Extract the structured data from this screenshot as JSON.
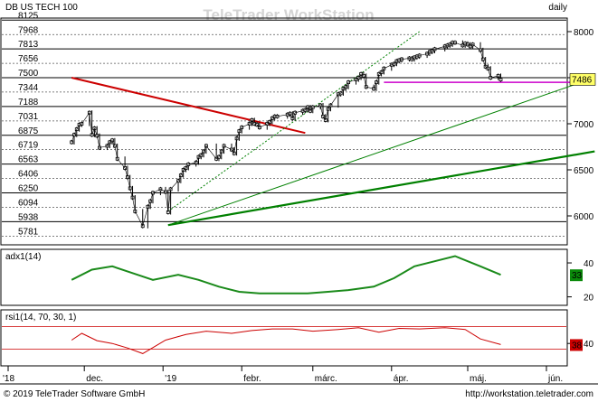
{
  "header": {
    "instrument": "DB US TECH 100",
    "watermark": "TeleTrader WorkStation",
    "period": "daily"
  },
  "footer": {
    "copyright": "© 2019 TeleTrader Software GmbH",
    "url": "http://workstation.teletrader.com"
  },
  "colors": {
    "price": "#000000",
    "trend_red": "#cc0000",
    "trend_green": "#008000",
    "resistance": "#cc00cc",
    "adx": "#1a8a1a",
    "rsi": "#cc0000",
    "adx_badge": "#0a8a0a",
    "rsi_badge": "#cc0000"
  },
  "chart_data": [
    {
      "type": "line",
      "title": "DB US TECH 100",
      "frequency": "daily",
      "x_tick_labels": [
        "'18",
        "dec.",
        "'19",
        "febr.",
        "márc.",
        "ápr.",
        "máj.",
        "jún."
      ],
      "ylim": [
        5700,
        8200
      ],
      "left_levels": [
        8125,
        7968,
        7813,
        7656,
        7500,
        7344,
        7188,
        7031,
        6875,
        6719,
        6563,
        6406,
        6250,
        6094,
        5938,
        5781
      ],
      "right_ticks": [
        6000,
        6500,
        7000,
        7500,
        8000
      ],
      "last_value": 7486,
      "series": [
        {
          "name": "DB US TECH 100",
          "x": [
            "2018-11-26",
            "2018-11-27",
            "2018-11-28",
            "2018-11-29",
            "2018-11-30",
            "2018-12-03",
            "2018-12-04",
            "2018-12-05",
            "2018-12-06",
            "2018-12-07",
            "2018-12-10",
            "2018-12-11",
            "2018-12-12",
            "2018-12-13",
            "2018-12-14",
            "2018-12-17",
            "2018-12-18",
            "2018-12-19",
            "2018-12-20",
            "2018-12-21",
            "2018-12-24",
            "2018-12-26",
            "2018-12-27",
            "2018-12-28",
            "2018-12-31",
            "2019-01-02",
            "2019-01-03",
            "2019-01-04",
            "2019-01-07",
            "2019-01-08",
            "2019-01-09",
            "2019-01-10",
            "2019-01-11",
            "2019-01-14",
            "2019-01-15",
            "2019-01-16",
            "2019-01-17",
            "2019-01-18",
            "2019-01-22",
            "2019-01-23",
            "2019-01-24",
            "2019-01-25",
            "2019-01-28",
            "2019-01-29",
            "2019-01-30",
            "2019-01-31",
            "2019-02-01",
            "2019-02-04",
            "2019-02-05",
            "2019-02-06",
            "2019-02-07",
            "2019-02-08",
            "2019-02-11",
            "2019-02-12",
            "2019-02-13",
            "2019-02-14",
            "2019-02-15",
            "2019-02-19",
            "2019-02-20",
            "2019-02-21",
            "2019-02-22",
            "2019-02-25",
            "2019-02-26",
            "2019-02-27",
            "2019-02-28",
            "2019-03-01",
            "2019-03-04",
            "2019-03-05",
            "2019-03-06",
            "2019-03-07",
            "2019-03-08",
            "2019-03-11",
            "2019-03-12",
            "2019-03-13",
            "2019-03-14",
            "2019-03-15",
            "2019-03-18",
            "2019-03-19",
            "2019-03-20",
            "2019-03-21",
            "2019-03-22",
            "2019-03-25",
            "2019-03-26",
            "2019-03-27",
            "2019-03-28",
            "2019-03-29",
            "2019-04-01",
            "2019-04-02",
            "2019-04-03",
            "2019-04-04",
            "2019-04-05",
            "2019-04-08",
            "2019-04-09",
            "2019-04-10",
            "2019-04-11",
            "2019-04-12",
            "2019-04-15",
            "2019-04-16",
            "2019-04-17",
            "2019-04-18",
            "2019-04-22",
            "2019-04-23",
            "2019-04-24",
            "2019-04-25",
            "2019-04-26",
            "2019-04-29",
            "2019-04-30",
            "2019-05-01",
            "2019-05-02",
            "2019-05-03",
            "2019-05-06",
            "2019-05-07",
            "2019-05-08",
            "2019-05-09",
            "2019-05-10",
            "2019-05-13",
            "2019-05-14"
          ],
          "values": [
            6800,
            6880,
            6940,
            6990,
            7000,
            7120,
            6880,
            6950,
            6870,
            6740,
            6760,
            6800,
            6820,
            6760,
            6620,
            6520,
            6420,
            6300,
            6200,
            6050,
            5890,
            6100,
            6160,
            6250,
            6290,
            6260,
            6040,
            6290,
            6380,
            6440,
            6500,
            6520,
            6560,
            6580,
            6640,
            6660,
            6700,
            6760,
            6620,
            6640,
            6700,
            6760,
            6720,
            6680,
            6840,
            6920,
            6960,
            7000,
            7040,
            7000,
            6990,
            6960,
            7000,
            7020,
            7060,
            7080,
            7080,
            7100,
            7110,
            7060,
            7120,
            7140,
            7150,
            7180,
            7140,
            7180,
            7200,
            7080,
            7040,
            7160,
            7200,
            7320,
            7330,
            7380,
            7400,
            7450,
            7480,
            7500,
            7540,
            7520,
            7400,
            7380,
            7450,
            7540,
            7560,
            7600,
            7640,
            7650,
            7680,
            7690,
            7700,
            7710,
            7700,
            7720,
            7730,
            7740,
            7760,
            7780,
            7790,
            7810,
            7840,
            7850,
            7860,
            7880,
            7880,
            7850,
            7870,
            7860,
            7840,
            7860,
            7800,
            7700,
            7620,
            7600,
            7500,
            7520,
            7480
          ]
        },
        {
          "name": "red trendline",
          "x": [
            "2018-11-26",
            "2019-02-26"
          ],
          "values": [
            7500,
            6900
          ]
        },
        {
          "name": "green support (long)",
          "x": [
            "2019-01-03",
            "2019-06-20"
          ],
          "values": [
            5900,
            6700
          ]
        },
        {
          "name": "green support (steep)",
          "x": [
            "2019-01-03",
            "2019-06-20"
          ],
          "values": [
            5900,
            7500
          ]
        },
        {
          "name": "green channel (dotted)",
          "x": [
            "2019-01-03",
            "2019-04-12"
          ],
          "values": [
            6050,
            8000
          ]
        },
        {
          "name": "resistance",
          "x": [
            "2019-03-29",
            "2019-06-15"
          ],
          "values": [
            7450,
            7450
          ]
        }
      ]
    },
    {
      "type": "line",
      "title": "adx1(14)",
      "ylim": [
        15,
        48
      ],
      "right_ticks": [
        20,
        40
      ],
      "last_value": 33,
      "series": [
        {
          "name": "adx1(14)",
          "x": [
            "2018-11-26",
            "2018-12-04",
            "2018-12-12",
            "2018-12-20",
            "2018-12-28",
            "2019-01-07",
            "2019-01-15",
            "2019-01-23",
            "2019-01-31",
            "2019-02-08",
            "2019-02-19",
            "2019-02-27",
            "2019-03-07",
            "2019-03-15",
            "2019-03-25",
            "2019-04-02",
            "2019-04-10",
            "2019-04-18",
            "2019-04-26",
            "2019-05-06",
            "2019-05-14"
          ],
          "values": [
            30,
            36,
            38,
            34,
            30,
            33,
            30,
            26,
            23,
            22,
            22,
            22,
            23,
            24,
            26,
            31,
            38,
            41,
            44,
            38,
            33
          ]
        }
      ]
    },
    {
      "type": "line",
      "title": "rsi1(14, 70, 30, 1)",
      "ylim": [
        0,
        100
      ],
      "right_ticks": [
        40
      ],
      "levels": [
        70,
        30
      ],
      "last_value": 38,
      "series": [
        {
          "name": "rsi1(14, 70, 30, 1)",
          "x": [
            "2018-11-26",
            "2018-11-30",
            "2018-12-06",
            "2018-12-12",
            "2018-12-18",
            "2018-12-24",
            "2019-01-02",
            "2019-01-10",
            "2019-01-18",
            "2019-01-28",
            "2019-02-05",
            "2019-02-13",
            "2019-02-21",
            "2019-03-01",
            "2019-03-11",
            "2019-03-19",
            "2019-03-27",
            "2019-04-04",
            "2019-04-12",
            "2019-04-22",
            "2019-04-30",
            "2019-05-06",
            "2019-05-14"
          ],
          "values": [
            46,
            58,
            45,
            40,
            32,
            22,
            46,
            56,
            62,
            58,
            63,
            66,
            66,
            62,
            65,
            68,
            60,
            67,
            66,
            68,
            65,
            48,
            38
          ]
        }
      ]
    }
  ]
}
